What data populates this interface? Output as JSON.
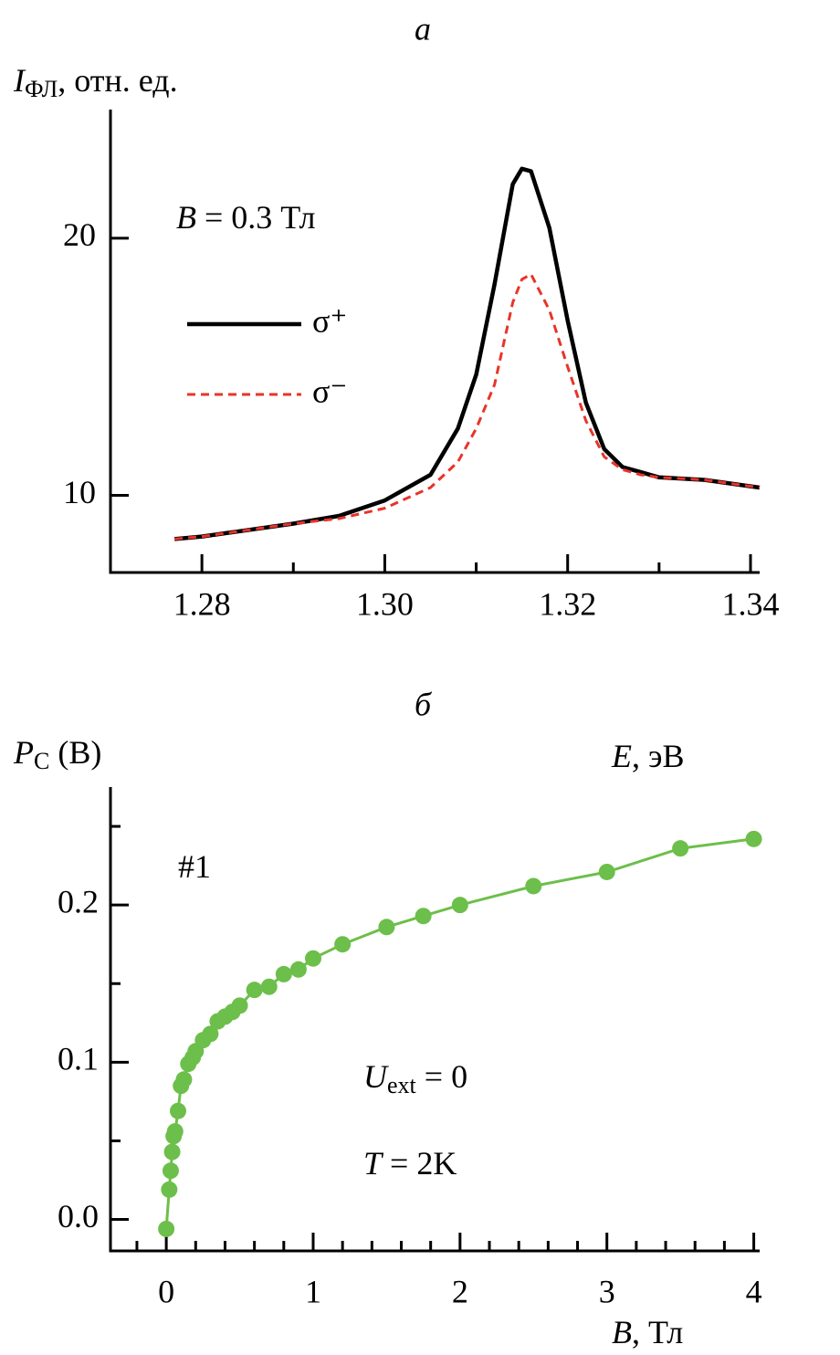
{
  "chart_data": [
    {
      "type": "line",
      "title": "а",
      "ylabel": {
        "italic": "I",
        "sub": "ФЛ",
        "text": ", отн. ед."
      },
      "xlabel": {
        "italic": "E",
        "text": ", эВ"
      },
      "annotations": [
        {
          "italic": "B",
          "text": " = 0.3 Тл"
        }
      ],
      "xlim": [
        1.27,
        1.341
      ],
      "ylim": [
        7,
        25
      ],
      "xticks": [
        1.28,
        {
          "value": 1.3,
          "label": "1.30"
        },
        1.32,
        1.34
      ],
      "xminorticks": [
        1.29,
        1.31,
        1.33
      ],
      "yticks": [
        10,
        20
      ],
      "series": [
        {
          "name": "σ⁺",
          "color": "#000000",
          "dash": false,
          "x": [
            1.277,
            1.28,
            1.29,
            1.295,
            1.3,
            1.305,
            1.308,
            1.31,
            1.312,
            1.314,
            1.315,
            1.316,
            1.318,
            1.32,
            1.322,
            1.324,
            1.326,
            1.328,
            1.33,
            1.335,
            1.341
          ],
          "values": [
            8.3,
            8.4,
            8.9,
            9.2,
            9.8,
            10.8,
            12.6,
            14.7,
            18.2,
            22.1,
            22.7,
            22.6,
            20.4,
            16.8,
            13.6,
            11.8,
            11.1,
            10.9,
            10.7,
            10.6,
            10.3
          ]
        },
        {
          "name": "σ⁻",
          "color": "#e8342a",
          "dash": true,
          "x": [
            1.277,
            1.28,
            1.29,
            1.295,
            1.3,
            1.305,
            1.308,
            1.31,
            1.312,
            1.314,
            1.315,
            1.316,
            1.318,
            1.32,
            1.322,
            1.324,
            1.326,
            1.328,
            1.33,
            1.335,
            1.341
          ],
          "values": [
            8.3,
            8.4,
            8.9,
            9.1,
            9.5,
            10.3,
            11.3,
            12.6,
            14.3,
            17.5,
            18.4,
            18.6,
            17.2,
            15.0,
            12.9,
            11.5,
            11.0,
            10.8,
            10.7,
            10.6,
            10.3
          ]
        }
      ]
    },
    {
      "type": "scatter",
      "title": "б",
      "ylabel": {
        "italic": "P",
        "sub": "C",
        "text": " (B)"
      },
      "xlabel": {
        "italic": "B",
        "text": ", Тл"
      },
      "annotations": [
        {
          "text": "#1"
        },
        {
          "italic": "U",
          "sub": "ext",
          "text": " = 0"
        },
        {
          "italic": "T",
          "text": " = 2K"
        }
      ],
      "xlim": [
        -0.38,
        4.04
      ],
      "ylim": [
        -0.02,
        0.275
      ],
      "xticks": [
        0,
        1,
        2,
        3,
        4
      ],
      "xminorticks": [
        -0.2,
        0.2,
        0.4,
        0.6,
        0.8,
        1.2,
        1.4,
        1.6,
        1.8,
        2.2,
        2.4,
        2.6,
        2.8,
        3.2,
        3.4,
        3.6,
        3.8
      ],
      "yticks": [
        {
          "value": 0,
          "label": "0.0"
        },
        0.1,
        0.2
      ],
      "yminorticks": [
        0.05,
        0.15,
        0.25
      ],
      "series": [
        {
          "color": "#6cbf4a",
          "x": [
            0.0,
            0.02,
            0.03,
            0.04,
            0.05,
            0.06,
            0.08,
            0.1,
            0.12,
            0.15,
            0.18,
            0.2,
            0.25,
            0.3,
            0.35,
            0.4,
            0.45,
            0.5,
            0.6,
            0.7,
            0.8,
            0.9,
            1.0,
            1.2,
            1.5,
            1.75,
            2.0,
            2.5,
            3.0,
            3.5,
            4.0
          ],
          "values": [
            -0.006,
            0.019,
            0.031,
            0.043,
            0.053,
            0.056,
            0.069,
            0.085,
            0.089,
            0.099,
            0.103,
            0.107,
            0.114,
            0.118,
            0.126,
            0.129,
            0.132,
            0.136,
            0.146,
            0.148,
            0.156,
            0.159,
            0.166,
            0.175,
            0.186,
            0.193,
            0.2,
            0.212,
            0.221,
            0.236,
            0.242
          ]
        }
      ]
    }
  ]
}
